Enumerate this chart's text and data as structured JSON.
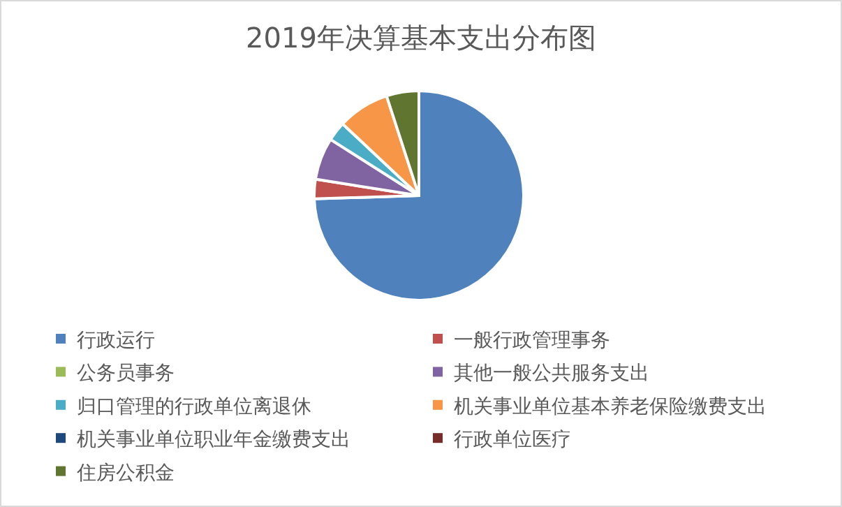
{
  "chart_data": {
    "type": "pie",
    "title": "2019年决算基本支出分布图",
    "categories": [
      "行政运行",
      "一般行政管理事务",
      "公务员事务",
      "其他一般公共服务支出",
      "归口管理的行政单位离退休",
      "机关事业单位基本养老保险缴费支出",
      "机关事业单位职业年金缴费支出",
      "行政单位医疗",
      "住房公积金"
    ],
    "values": [
      74.5,
      3,
      0,
      6.5,
      3,
      8,
      0,
      0,
      5
    ],
    "colors": [
      "#4f81bd",
      "#c0504d",
      "#9bbb59",
      "#8064a2",
      "#4bacc6",
      "#f79646",
      "#1f497d",
      "#772c2a",
      "#5f7530"
    ],
    "legend": "bottom"
  }
}
